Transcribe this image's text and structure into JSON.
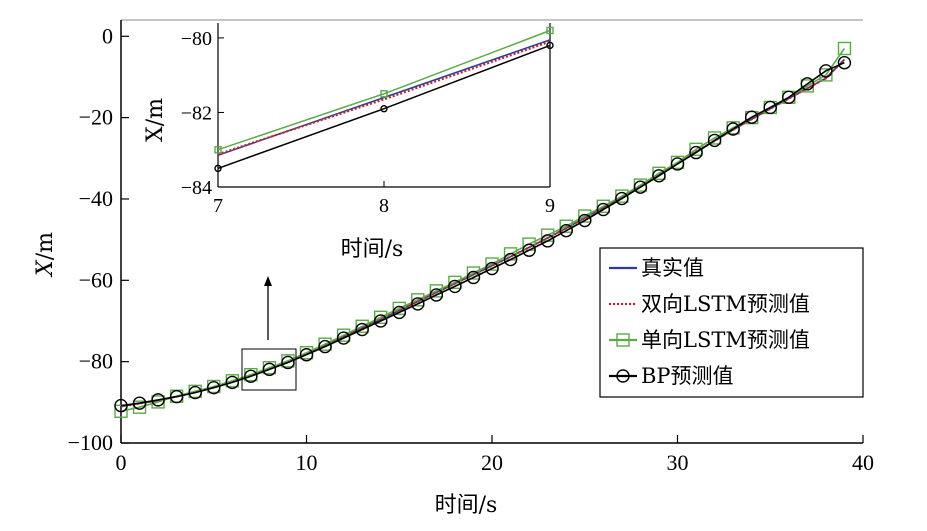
{
  "chart_data": [
    {
      "type": "line",
      "xlabel": "时间/s",
      "ylabel": "X/m",
      "xlim": [
        0,
        40
      ],
      "ylim": [
        -100,
        4
      ],
      "xticks": [
        0,
        10,
        20,
        30,
        40
      ],
      "yticks": [
        0,
        -20,
        -40,
        -60,
        -80,
        -100
      ],
      "grid": false,
      "legend_position": "bottom-right",
      "x": [
        0,
        1,
        2,
        3,
        4,
        5,
        6,
        7,
        8,
        9,
        10,
        11,
        12,
        13,
        14,
        15,
        16,
        17,
        18,
        19,
        20,
        21,
        22,
        23,
        24,
        25,
        26,
        27,
        28,
        29,
        30,
        31,
        32,
        33,
        34,
        35,
        36,
        37,
        38,
        39
      ],
      "series": [
        {
          "name": "真实值",
          "color": "#2b3a9c",
          "style": "solid",
          "marker": "none",
          "values": [
            -91.0,
            -90.3,
            -89.5,
            -88.6,
            -87.5,
            -86.3,
            -84.9,
            -83.4,
            -81.6,
            -80.0,
            -78.0,
            -76.0,
            -73.9,
            -71.7,
            -69.6,
            -67.4,
            -65.2,
            -63.0,
            -60.8,
            -58.6,
            -56.4,
            -54.2,
            -51.9,
            -49.6,
            -47.2,
            -44.7,
            -42.1,
            -39.5,
            -36.8,
            -34.0,
            -31.2,
            -28.4,
            -25.7,
            -23.0,
            -20.4,
            -17.8,
            -15.3,
            -12.8,
            -10.3,
            -5.7
          ]
        },
        {
          "name": "双向LSTM预测值",
          "color": "#cc2222",
          "style": "dotted",
          "marker": "none",
          "values": [
            -91.0,
            -90.3,
            -89.5,
            -88.6,
            -87.5,
            -86.3,
            -84.9,
            -83.3,
            -81.6,
            -80.0,
            -78.0,
            -76.0,
            -73.9,
            -71.7,
            -69.6,
            -67.4,
            -65.2,
            -63.0,
            -60.8,
            -58.6,
            -56.4,
            -54.2,
            -51.9,
            -49.6,
            -47.2,
            -44.7,
            -42.1,
            -39.5,
            -36.8,
            -34.0,
            -31.2,
            -28.4,
            -25.7,
            -23.0,
            -20.4,
            -17.8,
            -15.3,
            -12.8,
            -10.3,
            -5.7
          ]
        },
        {
          "name": "单向LSTM预测值",
          "color": "#5aaa46",
          "style": "solid",
          "marker": "square",
          "values": [
            -92.2,
            -91.2,
            -89.9,
            -88.5,
            -87.3,
            -86.1,
            -84.7,
            -83.2,
            -81.5,
            -79.8,
            -77.8,
            -75.7,
            -73.5,
            -71.3,
            -69.1,
            -66.9,
            -64.8,
            -62.6,
            -60.5,
            -58.2,
            -56.0,
            -53.5,
            -51.1,
            -48.9,
            -46.7,
            -44.2,
            -41.8,
            -39.3,
            -36.6,
            -33.7,
            -31.0,
            -27.8,
            -25.0,
            -22.5,
            -20.0,
            -17.5,
            -15.0,
            -12.2,
            -9.5,
            -3.0
          ]
        },
        {
          "name": "BP预测值",
          "color": "#000000",
          "style": "solid",
          "marker": "circle",
          "values": [
            -90.8,
            -90.2,
            -89.4,
            -88.6,
            -87.6,
            -86.4,
            -85.1,
            -83.6,
            -81.9,
            -80.2,
            -78.3,
            -76.3,
            -74.2,
            -72.1,
            -70.0,
            -67.9,
            -65.8,
            -63.6,
            -61.5,
            -59.3,
            -57.1,
            -54.9,
            -52.6,
            -50.3,
            -47.8,
            -45.3,
            -42.6,
            -39.9,
            -37.1,
            -34.3,
            -31.4,
            -28.6,
            -25.6,
            -22.8,
            -19.9,
            -17.5,
            -15.0,
            -11.7,
            -8.5,
            -6.5
          ]
        }
      ]
    },
    {
      "type": "line",
      "role": "inset",
      "xlabel": "时间/s",
      "ylabel": "X/m",
      "xlim": [
        7,
        9
      ],
      "ylim": [
        -84,
        -79.6
      ],
      "xticks": [
        7,
        8,
        9
      ],
      "yticks": [
        -80,
        -82,
        -84
      ],
      "x": [
        7,
        8,
        9
      ],
      "series": [
        {
          "name": "真实值",
          "color": "#2b3a9c",
          "style": "solid",
          "marker": "none",
          "values": [
            -83.15,
            -81.6,
            -80.05
          ]
        },
        {
          "name": "双向LSTM预测值",
          "color": "#cc2222",
          "style": "dotted",
          "marker": "none",
          "values": [
            -83.12,
            -81.65,
            -80.1
          ]
        },
        {
          "name": "单向LSTM预测值",
          "color": "#5aaa46",
          "style": "solid",
          "marker": "square",
          "values": [
            -83.0,
            -81.5,
            -79.8
          ]
        },
        {
          "name": "BP预测值",
          "color": "#000000",
          "style": "solid",
          "marker": "circle",
          "values": [
            -83.5,
            -81.9,
            -80.2
          ]
        }
      ]
    }
  ],
  "labels": {
    "xlabel": "时间/s",
    "ylabel_italic": "X",
    "ylabel_unit": "/m",
    "inset_xlabel": "时间/s",
    "inset_ylabel": "X/m"
  }
}
